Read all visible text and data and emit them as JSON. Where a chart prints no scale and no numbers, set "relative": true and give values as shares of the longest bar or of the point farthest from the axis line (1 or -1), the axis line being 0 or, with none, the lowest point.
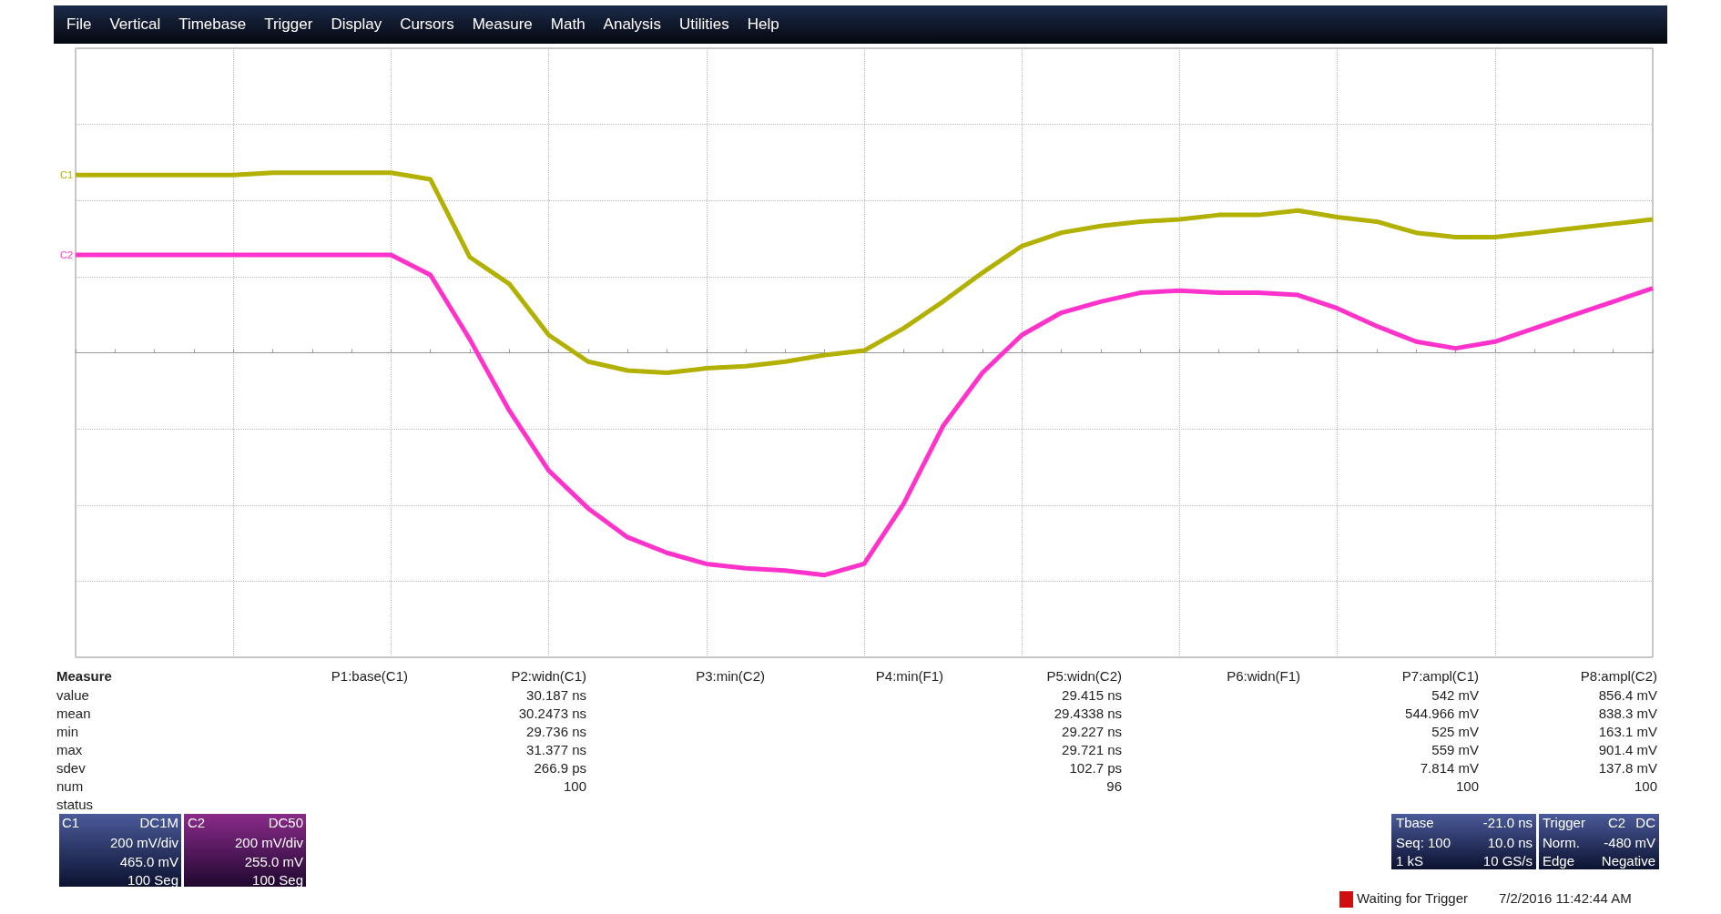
{
  "chart_data": [
    {
      "type": "other",
      "annotations": [
        "File",
        "Vertical",
        "Timebase",
        "Trigger",
        "Display",
        "Cursors",
        "Measure",
        "Math",
        "Analysis",
        "Utilities",
        "Help"
      ]
    },
    {
      "type": "line",
      "relative": true,
      "categories": [
        null,
        null,
        null,
        null,
        null,
        null,
        null,
        null,
        null,
        null,
        null,
        null,
        null,
        null,
        null,
        null,
        null,
        null,
        null,
        null,
        null,
        null,
        null,
        null,
        null,
        null,
        null,
        null,
        null,
        null,
        null,
        null,
        null,
        null,
        null,
        null,
        null,
        null,
        null,
        null,
        null
      ],
      "grid": true,
      "legend": false,
      "marker": "none",
      "series": [
        {
          "name": "C1",
          "color": "#b2b000",
          "values": [
            0.8,
            0.8,
            0.8,
            0.8,
            0.8,
            0.81,
            0.81,
            0.81,
            0.81,
            0.78,
            0.43,
            0.31,
            0.08,
            -0.04,
            -0.08,
            -0.09,
            -0.07,
            -0.06,
            -0.04,
            -0.01,
            0.01,
            0.11,
            0.23,
            0.36,
            0.48,
            0.54,
            0.57,
            0.59,
            0.6,
            0.62,
            0.62,
            0.64,
            0.61,
            0.59,
            0.54,
            0.52,
            0.52,
            0.54,
            0.56,
            0.58,
            0.6
          ]
        },
        {
          "name": "C2",
          "color": "#ff33cc",
          "values": [
            0.44,
            0.44,
            0.44,
            0.44,
            0.44,
            0.44,
            0.44,
            0.44,
            0.44,
            0.35,
            0.06,
            -0.26,
            -0.53,
            -0.7,
            -0.83,
            -0.9,
            -0.95,
            -0.97,
            -0.98,
            -1,
            -0.95,
            -0.68,
            -0.33,
            -0.09,
            0.08,
            0.18,
            0.23,
            0.27,
            0.28,
            0.27,
            0.27,
            0.26,
            0.2,
            0.12,
            0.05,
            0.02,
            0.05,
            0.11,
            0.17,
            0.23,
            0.29
          ]
        }
      ]
    },
    {
      "type": "other",
      "title": "Measure",
      "categories": [
        "P1:base(C1)",
        "P2:widn(C1)",
        "P3:min(C2)",
        "P4:min(F1)",
        "P5:widn(C2)",
        "P6:widn(F1)",
        "P7:ampl(C1)",
        "P8:ampl(C2)"
      ],
      "y_categories": [
        "value",
        "mean",
        "min",
        "max",
        "sdev",
        "num",
        "status"
      ],
      "cell_labels": [
        [
          null,
          "30.187 ns",
          null,
          null,
          "29.415 ns",
          null,
          "542 mV",
          "856.4 mV"
        ],
        [
          null,
          "30.2473 ns",
          null,
          null,
          "29.4338 ns",
          null,
          "544.966 mV",
          "838.3 mV"
        ],
        [
          null,
          "29.736 ns",
          null,
          null,
          "29.227 ns",
          null,
          "525 mV",
          "163.1 mV"
        ],
        [
          null,
          "31.377 ns",
          null,
          null,
          "29.721 ns",
          null,
          "559 mV",
          "901.4 mV"
        ],
        [
          null,
          "266.9 ps",
          null,
          null,
          "102.7 ps",
          null,
          "7.814 mV",
          "137.8 mV"
        ],
        [
          null,
          "100",
          null,
          null,
          "96",
          null,
          "100",
          "100"
        ],
        [
          null,
          null,
          null,
          null,
          null,
          null,
          null,
          null
        ]
      ]
    },
    {
      "type": "other",
      "annotations": [
        "C1",
        "DC1M",
        "200 mV/div",
        "465.0 mV",
        "100 Seg",
        "C2",
        "DC50",
        "200 mV/div",
        "255.0 mV",
        "100 Seg",
        "Tbase",
        "-21.0 ns",
        "Seq: 100",
        "10.0 ns",
        "1 kS",
        "10 GS/s",
        "Trigger",
        "C2",
        "DC",
        "Norm.",
        "-480 mV",
        "Edge",
        "Negative",
        "Waiting for Trigger",
        "7/2/2016 11:42:44 AM"
      ]
    }
  ]
}
